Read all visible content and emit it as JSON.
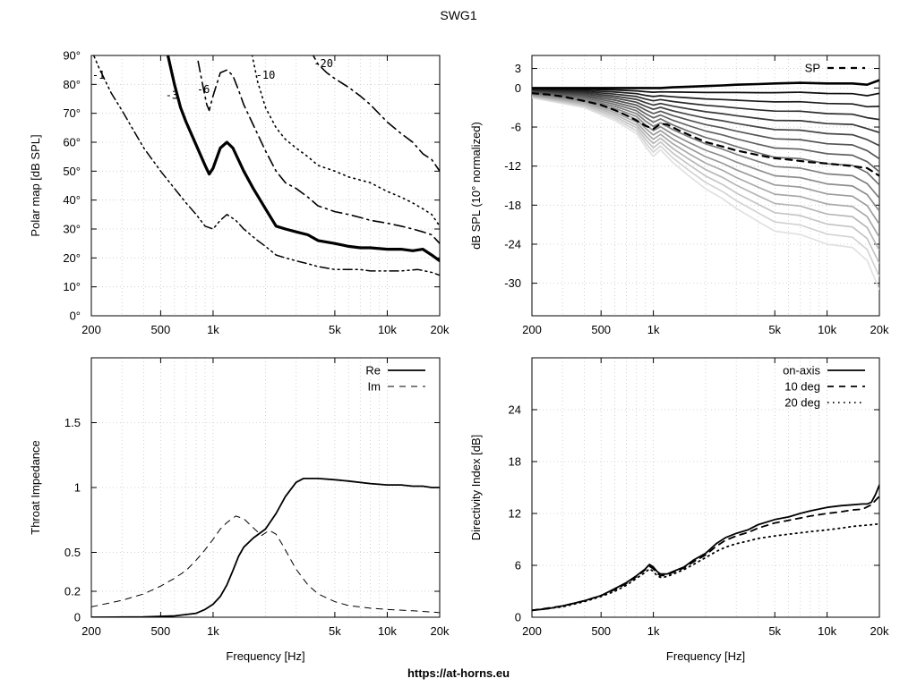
{
  "page": {
    "title": "SWG1",
    "footer": "https://at-horns.eu"
  },
  "chart_data": [
    {
      "id": "polar",
      "type": "line",
      "title": "",
      "xlabel": "",
      "ylabel": "Polar map [dB SPL]",
      "xscale": "log",
      "xlim": [
        200,
        20000
      ],
      "ylim": [
        0,
        90
      ],
      "xticks": [
        [
          200,
          "200"
        ],
        [
          500,
          "500"
        ],
        [
          1000,
          "1k"
        ],
        [
          5000,
          "5k"
        ],
        [
          10000,
          "10k"
        ],
        [
          20000,
          "20k"
        ]
      ],
      "yticks": [
        [
          0,
          "0°"
        ],
        [
          10,
          "10°"
        ],
        [
          20,
          "20°"
        ],
        [
          30,
          "30°"
        ],
        [
          40,
          "40°"
        ],
        [
          50,
          "50°"
        ],
        [
          60,
          "60°"
        ],
        [
          70,
          "70°"
        ],
        [
          80,
          "80°"
        ],
        [
          90,
          "90°"
        ]
      ],
      "grid": true,
      "series": [
        {
          "name": "-1",
          "style": "dashdotdot",
          "width": 1.5,
          "label_at": [
            220,
            82
          ],
          "x": [
            200,
            220,
            260,
            300,
            350,
            400,
            500,
            600,
            700,
            800,
            900,
            1000,
            1100,
            1200,
            1350,
            1500,
            1800,
            2000,
            2300,
            2600,
            3000,
            3500,
            4000,
            5000,
            6000,
            7000,
            8000,
            10000,
            12000,
            15000,
            18000,
            20000
          ],
          "y": [
            92,
            86,
            77,
            71,
            64,
            58,
            50,
            44,
            39,
            35,
            31,
            30,
            33,
            35,
            33,
            30,
            26,
            24,
            21,
            20,
            19,
            18,
            17,
            16,
            16,
            16,
            15.5,
            15.5,
            15.5,
            16,
            15,
            14
          ]
        },
        {
          "name": "-3",
          "style": "solid",
          "width": 3.2,
          "label_at": [
            580,
            75
          ],
          "x": [
            550,
            600,
            650,
            700,
            800,
            900,
            950,
            1000,
            1100,
            1200,
            1300,
            1500,
            1700,
            2000,
            2300,
            2600,
            3000,
            3500,
            4000,
            5000,
            6000,
            7000,
            8000,
            10000,
            12000,
            14000,
            16000,
            18000,
            20000
          ],
          "y": [
            90,
            80,
            72,
            67,
            59,
            52,
            49,
            51,
            58,
            60,
            58,
            50,
            44,
            37,
            31,
            30,
            29,
            28,
            26,
            25,
            24,
            23.5,
            23.5,
            23,
            23,
            22.5,
            23,
            21,
            19
          ]
        },
        {
          "name": "-6",
          "style": "dashdot",
          "width": 1.6,
          "label_at": [
            880,
            77
          ],
          "x": [
            820,
            870,
            920,
            950,
            1000,
            1100,
            1200,
            1300,
            1400,
            1500,
            1700,
            2000,
            2300,
            2600,
            3000,
            3500,
            4000,
            5000,
            6000,
            7000,
            8000,
            10000,
            12000,
            14000,
            16000,
            18000,
            20000
          ],
          "y": [
            88,
            80,
            73,
            71,
            76,
            84,
            85,
            83,
            78,
            73,
            66,
            57,
            50,
            46,
            44,
            41,
            38,
            36,
            35,
            34,
            33,
            32,
            31,
            30,
            29,
            28,
            25
          ]
        },
        {
          "name": "-10",
          "style": "dotted",
          "width": 1.6,
          "label_at": [
            2000,
            82
          ],
          "x": [
            1650,
            1800,
            2000,
            2300,
            2600,
            3000,
            3500,
            4000,
            5000,
            6000,
            8000,
            10000,
            12000,
            14000,
            16000,
            18000,
            20000
          ],
          "y": [
            92,
            81,
            72,
            65,
            61,
            58,
            55,
            52,
            50,
            48,
            46,
            43,
            41,
            39,
            37,
            35,
            31
          ]
        },
        {
          "name": "-20",
          "style": "dashdot",
          "width": 1.6,
          "label_at": [
            4300,
            86
          ],
          "x": [
            3600,
            4000,
            4500,
            5000,
            6000,
            7000,
            8000,
            10000,
            12000,
            14000,
            16000,
            18000,
            20000
          ],
          "y": [
            92,
            87,
            84,
            82,
            79,
            76,
            73,
            67,
            63,
            60,
            56,
            54,
            50
          ]
        }
      ]
    },
    {
      "id": "spl",
      "type": "line",
      "title": "",
      "xlabel": "",
      "ylabel": "dB SPL (10° normalized)",
      "xscale": "log",
      "xlim": [
        200,
        20000
      ],
      "ylim": [
        -35,
        5
      ],
      "xticks": [
        [
          200,
          "200"
        ],
        [
          500,
          "500"
        ],
        [
          1000,
          "1k"
        ],
        [
          5000,
          "5k"
        ],
        [
          10000,
          "10k"
        ],
        [
          20000,
          "20k"
        ]
      ],
      "yticks": [
        [
          3,
          "3"
        ],
        [
          0,
          "0"
        ],
        [
          -6,
          "-6"
        ],
        [
          -12,
          "-12"
        ],
        [
          -18,
          "-18"
        ],
        [
          -24,
          "-24"
        ],
        [
          -30,
          "-30"
        ]
      ],
      "grid": true,
      "legend": "top-right",
      "angle_curves": {
        "count": 17,
        "x": [
          200,
          400,
          600,
          800,
          900,
          1000,
          1100,
          1300,
          1600,
          2000,
          2500,
          3000,
          4000,
          5000,
          7000,
          10000,
          14000,
          17000,
          20000
        ],
        "first": [
          0,
          0,
          0,
          0,
          0,
          0,
          0,
          0.1,
          0.2,
          0.3,
          0.4,
          0.5,
          0.6,
          0.7,
          0.8,
          0.7,
          0.7,
          0.5,
          1.2
        ],
        "last": [
          -1.5,
          -3.0,
          -5.0,
          -7.0,
          -9.0,
          -10.5,
          -9.5,
          -11.5,
          -13.5,
          -15.5,
          -17.0,
          -18.5,
          -20.5,
          -22.0,
          -22.5,
          -24.0,
          -24.5,
          -26.5,
          -31.0
        ]
      },
      "series": [
        {
          "name": "SP",
          "style": "dashed",
          "width": 2.2,
          "x": [
            200,
            250,
            300,
            400,
            500,
            600,
            700,
            800,
            900,
            1000,
            1100,
            1200,
            1400,
            1700,
            2000,
            2500,
            3000,
            4000,
            5000,
            6000,
            8000,
            10000,
            14000,
            17000,
            20000
          ],
          "y": [
            -0.8,
            -1.0,
            -1.3,
            -2.0,
            -2.6,
            -3.4,
            -4.2,
            -5.0,
            -5.8,
            -6.3,
            -5.5,
            -5.6,
            -6.5,
            -7.5,
            -8.3,
            -9.0,
            -9.6,
            -10.3,
            -10.8,
            -11.0,
            -11.4,
            -11.6,
            -12.0,
            -12.3,
            -13.5
          ]
        }
      ]
    },
    {
      "id": "impedance",
      "type": "line",
      "title": "",
      "xlabel": "Frequency [Hz]",
      "ylabel": "Throat Impedance",
      "xscale": "log",
      "xlim": [
        200,
        20000
      ],
      "ylim": [
        0,
        2
      ],
      "xticks": [
        [
          200,
          "200"
        ],
        [
          500,
          "500"
        ],
        [
          1000,
          "1k"
        ],
        [
          5000,
          "5k"
        ],
        [
          10000,
          "10k"
        ],
        [
          20000,
          "20k"
        ]
      ],
      "yticks": [
        [
          0,
          "0"
        ],
        [
          0.2,
          "0.2"
        ],
        [
          0.5,
          "0.5"
        ],
        [
          1,
          "1"
        ],
        [
          1.5,
          "1.5"
        ]
      ],
      "grid": true,
      "legend": "top-right",
      "series": [
        {
          "name": "Re",
          "style": "solid",
          "width": 1.8,
          "x": [
            200,
            400,
            600,
            800,
            900,
            1000,
            1100,
            1200,
            1300,
            1400,
            1500,
            1700,
            2000,
            2300,
            2600,
            3000,
            3300,
            3600,
            4000,
            5000,
            6000,
            8000,
            10000,
            12000,
            14000,
            16000,
            18000,
            20000
          ],
          "y": [
            0,
            0.002,
            0.01,
            0.03,
            0.06,
            0.1,
            0.16,
            0.25,
            0.36,
            0.47,
            0.54,
            0.61,
            0.68,
            0.8,
            0.93,
            1.04,
            1.07,
            1.07,
            1.07,
            1.06,
            1.05,
            1.03,
            1.02,
            1.02,
            1.01,
            1.01,
            1.0,
            1.0
          ]
        },
        {
          "name": "Im",
          "style": "dashed",
          "width": 1.0,
          "x": [
            200,
            300,
            400,
            500,
            600,
            700,
            800,
            900,
            1000,
            1100,
            1200,
            1350,
            1500,
            1700,
            1900,
            2100,
            2300,
            2500,
            3000,
            3500,
            4000,
            5000,
            6000,
            8000,
            10000,
            14000,
            18000,
            20000
          ],
          "y": [
            0.08,
            0.13,
            0.18,
            0.24,
            0.3,
            0.36,
            0.44,
            0.52,
            0.6,
            0.68,
            0.73,
            0.78,
            0.76,
            0.69,
            0.63,
            0.67,
            0.64,
            0.56,
            0.37,
            0.25,
            0.18,
            0.12,
            0.09,
            0.07,
            0.06,
            0.05,
            0.04,
            0.035
          ]
        }
      ]
    },
    {
      "id": "di",
      "type": "line",
      "title": "",
      "xlabel": "Frequency [Hz]",
      "ylabel": "Directivity Index [dB]",
      "xscale": "log",
      "xlim": [
        200,
        20000
      ],
      "ylim": [
        0,
        30
      ],
      "xticks": [
        [
          200,
          "200"
        ],
        [
          500,
          "500"
        ],
        [
          1000,
          "1k"
        ],
        [
          5000,
          "5k"
        ],
        [
          10000,
          "10k"
        ],
        [
          20000,
          "20k"
        ]
      ],
      "yticks": [
        [
          0,
          "0"
        ],
        [
          6,
          "6"
        ],
        [
          12,
          "12"
        ],
        [
          18,
          "18"
        ],
        [
          24,
          "24"
        ]
      ],
      "grid": true,
      "legend": "top-right",
      "series": [
        {
          "name": "on-axis",
          "style": "solid",
          "width": 1.8,
          "x": [
            200,
            250,
            300,
            400,
            500,
            600,
            700,
            800,
            900,
            950,
            1000,
            1050,
            1100,
            1200,
            1300,
            1500,
            1700,
            2000,
            2300,
            2600,
            3000,
            3500,
            4000,
            5000,
            6000,
            7000,
            8000,
            10000,
            12000,
            14000,
            16000,
            17000,
            18000,
            19000,
            20000
          ],
          "y": [
            0.8,
            1.0,
            1.3,
            1.9,
            2.5,
            3.3,
            4.0,
            4.8,
            5.6,
            6.1,
            5.8,
            5.3,
            5.0,
            5.0,
            5.3,
            5.8,
            6.6,
            7.4,
            8.5,
            9.2,
            9.7,
            10.1,
            10.7,
            11.3,
            11.6,
            12.0,
            12.3,
            12.7,
            12.9,
            13.0,
            13.1,
            13.1,
            13.3,
            14.2,
            15.3
          ]
        },
        {
          "name": "10 deg",
          "style": "dashed",
          "width": 1.8,
          "x": [
            200,
            300,
            400,
            500,
            600,
            700,
            800,
            900,
            950,
            1000,
            1050,
            1100,
            1200,
            1300,
            1500,
            1700,
            2000,
            2300,
            2600,
            3000,
            3500,
            4000,
            5000,
            6000,
            8000,
            10000,
            12000,
            14000,
            16000,
            18000,
            20000
          ],
          "y": [
            0.8,
            1.3,
            1.9,
            2.5,
            3.2,
            3.9,
            4.7,
            5.5,
            5.9,
            5.6,
            5.1,
            4.8,
            4.9,
            5.2,
            5.7,
            6.4,
            7.2,
            8.2,
            8.9,
            9.4,
            9.8,
            10.3,
            10.9,
            11.2,
            11.7,
            12.0,
            12.2,
            12.4,
            12.5,
            13.0,
            14.0
          ]
        },
        {
          "name": "20 deg",
          "style": "dotted",
          "width": 1.8,
          "x": [
            200,
            300,
            400,
            500,
            600,
            700,
            800,
            900,
            950,
            1000,
            1050,
            1100,
            1200,
            1300,
            1500,
            1700,
            2000,
            2300,
            2600,
            3000,
            3500,
            4000,
            5000,
            6000,
            8000,
            10000,
            12000,
            14000,
            16000,
            18000,
            20000
          ],
          "y": [
            0.8,
            1.2,
            1.8,
            2.4,
            3.0,
            3.7,
            4.5,
            5.2,
            5.6,
            5.3,
            4.8,
            4.6,
            4.7,
            5.0,
            5.5,
            6.1,
            6.9,
            7.6,
            8.1,
            8.5,
            8.8,
            9.1,
            9.4,
            9.6,
            9.9,
            10.1,
            10.3,
            10.5,
            10.6,
            10.7,
            10.8
          ]
        }
      ]
    }
  ]
}
